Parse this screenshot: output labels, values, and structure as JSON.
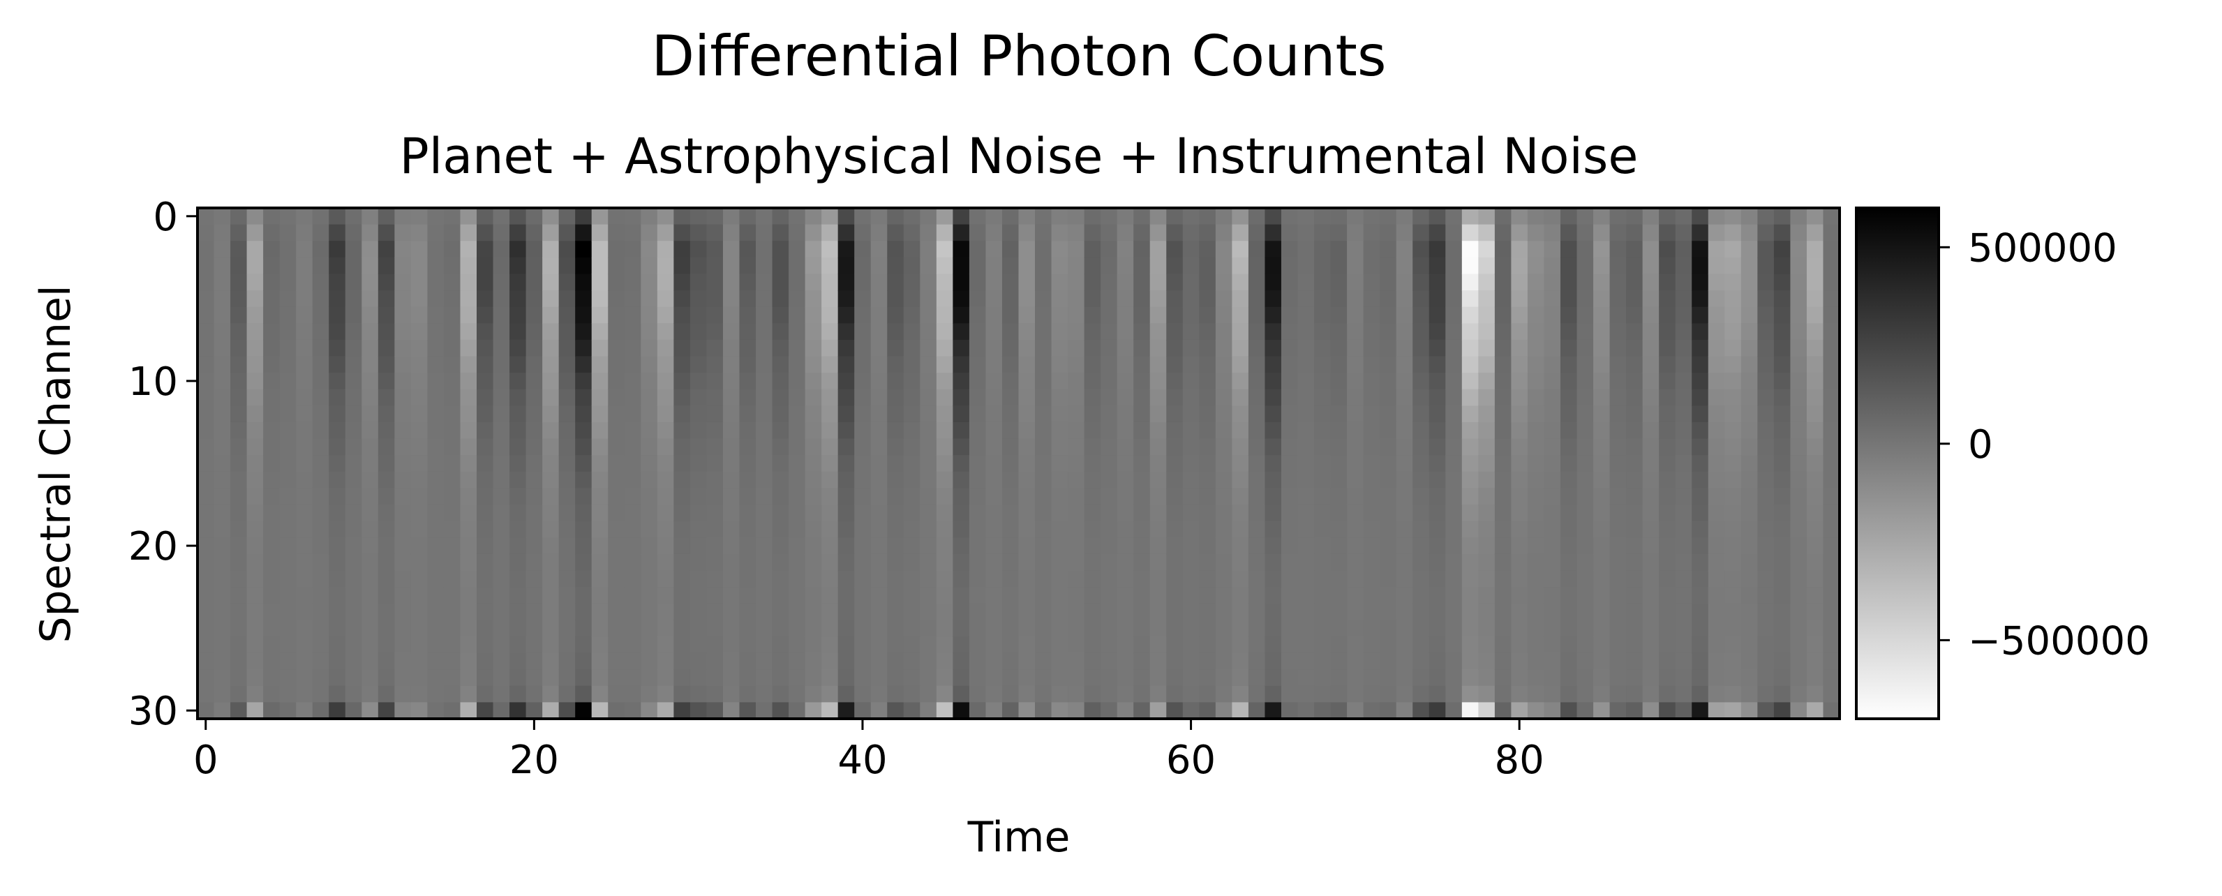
{
  "chart_data": {
    "type": "heatmap",
    "title": "Differential Photon Counts",
    "subtitle": "Planet + Astrophysical Noise + Instrumental Noise",
    "xlabel": "Time",
    "ylabel": "Spectral Channel",
    "x_ticks": [
      0,
      20,
      40,
      60,
      80
    ],
    "y_ticks": [
      0,
      10,
      20,
      30
    ],
    "n_time": 100,
    "n_channels": 31,
    "colormap": "gray_r",
    "colorbar": {
      "vmin": -700000,
      "vmax": 600000,
      "ticks": [
        500000,
        0,
        -500000
      ],
      "tick_labels": [
        "500000",
        "0",
        "−500000"
      ]
    },
    "column_amplitudes": [
      20000,
      -30000,
      150000,
      -250000,
      60000,
      30000,
      -40000,
      50000,
      300000,
      80000,
      -120000,
      250000,
      -80000,
      -100000,
      20000,
      40000,
      -320000,
      260000,
      60000,
      350000,
      120000,
      -300000,
      200000,
      620000,
      -380000,
      40000,
      30000,
      -100000,
      -300000,
      270000,
      180000,
      150000,
      -80000,
      150000,
      30000,
      200000,
      40000,
      -180000,
      -380000,
      500000,
      60000,
      -50000,
      180000,
      100000,
      -40000,
      -400000,
      590000,
      60000,
      -50000,
      100000,
      -130000,
      40000,
      -100000,
      -80000,
      120000,
      50000,
      -60000,
      100000,
      -220000,
      170000,
      70000,
      120000,
      -80000,
      -330000,
      100000,
      520000,
      50000,
      30000,
      80000,
      100000,
      -40000,
      40000,
      60000,
      -60000,
      180000,
      320000,
      50000,
      -660000,
      -480000,
      100000,
      -250000,
      -120000,
      -80000,
      210000,
      50000,
      -150000,
      80000,
      120000,
      -120000,
      200000,
      120000,
      520000,
      -220000,
      -250000,
      -150000,
      150000,
      250000,
      -100000,
      -300000,
      30000
    ],
    "channel_profile": [
      0.45,
      0.75,
      1.0,
      0.97,
      0.92,
      0.86,
      0.8,
      0.73,
      0.66,
      0.59,
      0.52,
      0.45,
      0.4,
      0.35,
      0.3,
      0.26,
      0.22,
      0.19,
      0.17,
      0.15,
      0.13,
      0.12,
      0.11,
      0.1,
      0.1,
      0.1,
      0.11,
      0.12,
      0.13,
      0.2,
      0.95
    ]
  }
}
